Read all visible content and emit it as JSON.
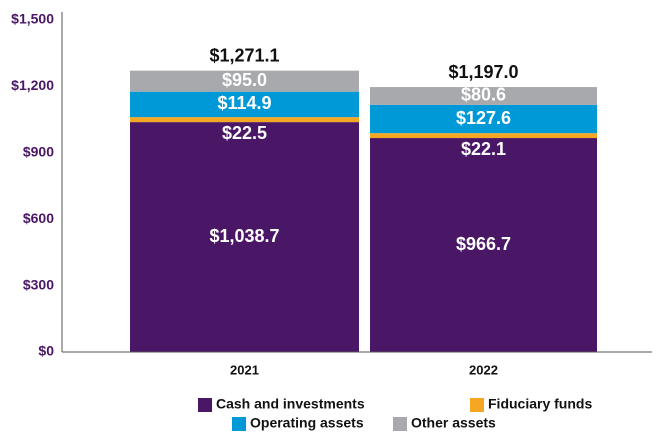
{
  "chart_data": {
    "type": "stacked_bar",
    "categories": [
      "2021",
      "2022"
    ],
    "series": [
      {
        "name": "Cash and investments",
        "color": "#4a1766",
        "values": [
          1038.7,
          966.7
        ],
        "value_labels": [
          "$1,038.7",
          "$966.7"
        ]
      },
      {
        "name": "Fiduciary funds",
        "color": "#f5a623",
        "values": [
          22.5,
          22.1
        ],
        "value_labels": [
          "$22.5",
          "$22.1"
        ]
      },
      {
        "name": "Operating assets",
        "color": "#0099d8",
        "values": [
          114.9,
          127.6
        ],
        "value_labels": [
          "$114.9",
          "$127.6"
        ]
      },
      {
        "name": "Other assets",
        "color": "#a7a9ac",
        "values": [
          95.0,
          80.6
        ],
        "value_labels": [
          "$95.0",
          "$80.6"
        ]
      }
    ],
    "totals": {
      "values": [
        1271.1,
        1197.0
      ],
      "value_labels": [
        "$1,271.1",
        "$1,197.0"
      ]
    },
    "ylim": [
      0,
      1500
    ],
    "yticks": [
      {
        "value": 0,
        "label": "$0"
      },
      {
        "value": 300,
        "label": "$300"
      },
      {
        "value": 600,
        "label": "$600"
      },
      {
        "value": 900,
        "label": "$900"
      },
      {
        "value": 1200,
        "label": "$1,200"
      },
      {
        "value": 1500,
        "label": "$1,500"
      }
    ],
    "grid": false
  }
}
